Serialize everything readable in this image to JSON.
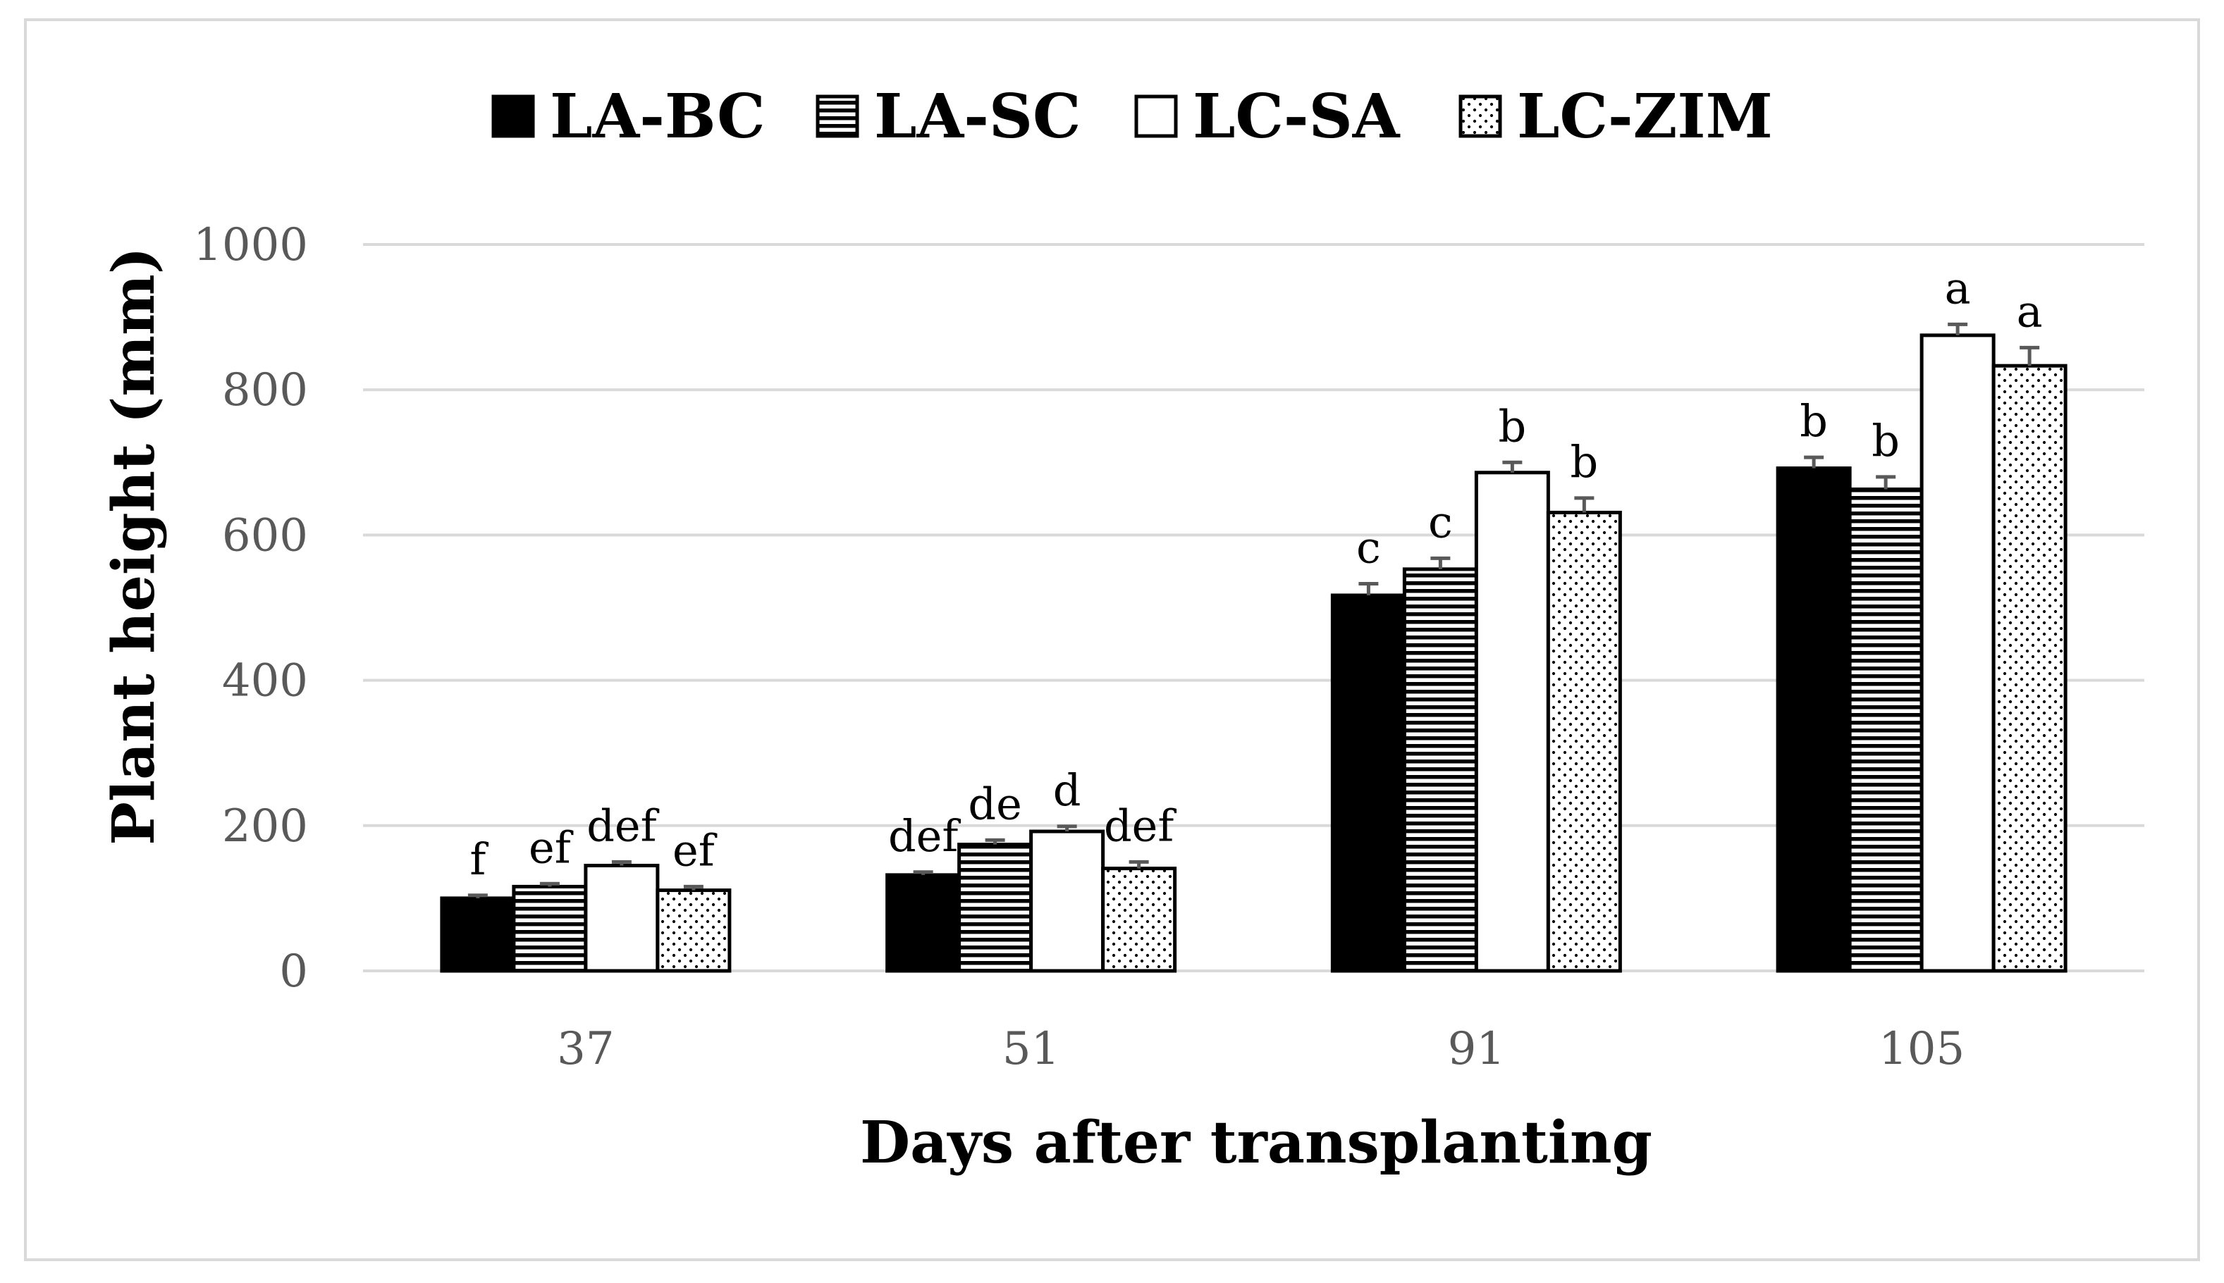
{
  "chart_data": {
    "type": "bar",
    "title": "",
    "xlabel": "Days after transplanting",
    "ylabel": "Plant height (mm)",
    "categories": [
      "37",
      "51",
      "91",
      "105"
    ],
    "ylim": [
      0,
      1000
    ],
    "yticks": [
      0,
      200,
      400,
      600,
      800,
      1000
    ],
    "ytick_labels": [
      "0",
      "200",
      "400",
      "600",
      "800",
      "1000"
    ],
    "grid": true,
    "legend_position": "top-center",
    "series": [
      {
        "name": "LA-BC",
        "pattern": "solid-black",
        "values": [
          100,
          132,
          517,
          692
        ],
        "errors": [
          4,
          4,
          16,
          15
        ],
        "letters": [
          "f",
          "def",
          "c",
          "b"
        ]
      },
      {
        "name": "LA-SC",
        "pattern": "horizontal-stripes",
        "values": [
          116,
          174,
          553,
          663
        ],
        "errors": [
          4,
          6,
          15,
          17
        ],
        "letters": [
          "ef",
          "de",
          "c",
          "b"
        ]
      },
      {
        "name": "LC-SA",
        "pattern": "white",
        "values": [
          145,
          192,
          686,
          875
        ],
        "errors": [
          5,
          7,
          14,
          15
        ],
        "letters": [
          "def",
          "d",
          "b",
          "a"
        ]
      },
      {
        "name": "LC-ZIM",
        "pattern": "dots",
        "values": [
          111,
          141,
          631,
          833
        ],
        "errors": [
          5,
          9,
          20,
          25
        ],
        "letters": [
          "ef",
          "def",
          "b",
          "a"
        ]
      }
    ],
    "colors": {
      "bar_fill_solid": "#000000",
      "bar_stroke": "#000000",
      "gridline": "#d9d9d9",
      "tick_label": "#595959",
      "error_bar": "#595959",
      "frame": "#d9d9d9"
    }
  }
}
